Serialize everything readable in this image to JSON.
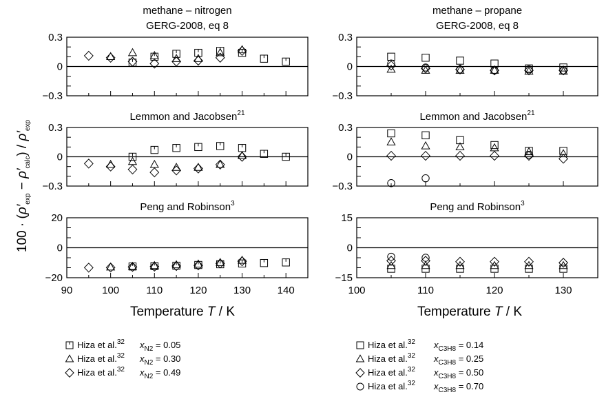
{
  "figure": {
    "ylabel": {
      "prefix": "100 · (",
      "rho": "ρ′",
      "sub_exp": "exp",
      "minus": " − ",
      "sub_calc": "calc",
      "close": ") / "
    },
    "xlabel": {
      "text": "Temperature ",
      "symbol": "T",
      "unit": " / K"
    }
  },
  "chart_data": [
    {
      "id": "mn-gerg",
      "type": "scatter",
      "title": [
        "methane – nitrogen",
        "GERG-2008, eq 8"
      ],
      "xlim": [
        90,
        145
      ],
      "ylim": [
        -0.3,
        0.3
      ],
      "yticks": [
        {
          "v": 0.3,
          "label": "0.3"
        },
        {
          "v": 0,
          "label": "0"
        },
        {
          "v": -0.3,
          "label": "−0.3"
        }
      ],
      "series": [
        {
          "marker": "square-tick",
          "points": [
            [
              105,
              0.04
            ],
            [
              110,
              0.1
            ],
            [
              115,
              0.13
            ],
            [
              120,
              0.14
            ],
            [
              125,
              0.16
            ],
            [
              130,
              0.14
            ],
            [
              135,
              0.08
            ],
            [
              140,
              0.05
            ]
          ]
        },
        {
          "marker": "triangle",
          "points": [
            [
              100,
              0.1
            ],
            [
              105,
              0.14
            ],
            [
              110,
              0.11
            ],
            [
              115,
              0.08
            ],
            [
              120,
              0.08
            ],
            [
              125,
              0.14
            ],
            [
              130,
              0.17
            ]
          ]
        },
        {
          "marker": "diamond",
          "points": [
            [
              95,
              0.11
            ],
            [
              100,
              0.09
            ],
            [
              105,
              0.05
            ],
            [
              110,
              0.03
            ],
            [
              115,
              0.05
            ],
            [
              120,
              0.06
            ],
            [
              125,
              0.09
            ],
            [
              130,
              0.16
            ]
          ]
        }
      ]
    },
    {
      "id": "mp-gerg",
      "type": "scatter",
      "title": [
        "methane – propane",
        "GERG-2008, eq 8"
      ],
      "xlim": [
        100,
        135
      ],
      "ylim": [
        -0.3,
        0.3
      ],
      "yticks": [
        {
          "v": 0.3,
          "label": "0.3"
        },
        {
          "v": 0,
          "label": "0"
        },
        {
          "v": -0.3,
          "label": "−0.3"
        }
      ],
      "series": [
        {
          "marker": "square",
          "points": [
            [
              105,
              0.1
            ],
            [
              110,
              0.09
            ],
            [
              115,
              0.06
            ],
            [
              120,
              0.03
            ],
            [
              125,
              -0.02
            ],
            [
              130,
              -0.01
            ]
          ]
        },
        {
          "marker": "triangle",
          "points": [
            [
              105,
              -0.03
            ],
            [
              110,
              -0.04
            ],
            [
              115,
              -0.04
            ],
            [
              120,
              -0.04
            ],
            [
              125,
              -0.05
            ],
            [
              130,
              -0.05
            ]
          ]
        },
        {
          "marker": "diamond",
          "points": [
            [
              105,
              0.01
            ],
            [
              110,
              -0.02
            ],
            [
              115,
              -0.03
            ],
            [
              120,
              -0.04
            ],
            [
              125,
              -0.04
            ],
            [
              130,
              -0.04
            ]
          ]
        },
        {
          "marker": "circle",
          "points": [
            [
              105,
              0.03
            ],
            [
              110,
              -0.01
            ],
            [
              115,
              -0.03
            ],
            [
              120,
              -0.04
            ],
            [
              125,
              -0.03
            ],
            [
              130,
              -0.04
            ]
          ]
        }
      ]
    },
    {
      "id": "mn-lemmon",
      "type": "scatter",
      "title": [
        "Lemmon and Jacobsen"
      ],
      "title_sup": "21",
      "xlim": [
        90,
        145
      ],
      "ylim": [
        -0.3,
        0.3
      ],
      "yticks": [
        {
          "v": 0.3,
          "label": "0.3"
        },
        {
          "v": 0,
          "label": "0"
        },
        {
          "v": -0.3,
          "label": "−0.3"
        }
      ],
      "series": [
        {
          "marker": "square-tick",
          "points": [
            [
              105,
              0.0
            ],
            [
              110,
              0.07
            ],
            [
              115,
              0.09
            ],
            [
              120,
              0.1
            ],
            [
              125,
              0.11
            ],
            [
              130,
              0.09
            ],
            [
              135,
              0.03
            ],
            [
              140,
              0.0
            ]
          ]
        },
        {
          "marker": "triangle",
          "points": [
            [
              100,
              -0.08
            ],
            [
              105,
              -0.05
            ],
            [
              110,
              -0.08
            ],
            [
              115,
              -0.11
            ],
            [
              120,
              -0.11
            ],
            [
              125,
              -0.08
            ],
            [
              130,
              0.01
            ]
          ]
        },
        {
          "marker": "diamond",
          "points": [
            [
              95,
              -0.07
            ],
            [
              100,
              -0.1
            ],
            [
              105,
              -0.13
            ],
            [
              110,
              -0.16
            ],
            [
              115,
              -0.14
            ],
            [
              120,
              -0.12
            ],
            [
              125,
              -0.08
            ],
            [
              130,
              0.0
            ]
          ]
        }
      ]
    },
    {
      "id": "mp-lemmon",
      "type": "scatter",
      "title": [
        "Lemmon and Jacobsen"
      ],
      "title_sup": "21",
      "xlim": [
        100,
        135
      ],
      "ylim": [
        -0.3,
        0.3
      ],
      "yticks": [
        {
          "v": 0.3,
          "label": "0.3"
        },
        {
          "v": 0,
          "label": "0"
        },
        {
          "v": -0.3,
          "label": "−0.3"
        }
      ],
      "series": [
        {
          "marker": "square",
          "points": [
            [
              105,
              0.24
            ],
            [
              110,
              0.22
            ],
            [
              115,
              0.17
            ],
            [
              120,
              0.12
            ],
            [
              125,
              0.06
            ],
            [
              130,
              0.06
            ]
          ]
        },
        {
          "marker": "triangle",
          "points": [
            [
              105,
              0.15
            ],
            [
              110,
              0.11
            ],
            [
              115,
              0.1
            ],
            [
              120,
              0.09
            ],
            [
              125,
              0.05
            ],
            [
              130,
              0.03
            ]
          ]
        },
        {
          "marker": "diamond",
          "points": [
            [
              105,
              0.01
            ],
            [
              110,
              0.01
            ],
            [
              115,
              0.01
            ],
            [
              120,
              0.01
            ],
            [
              125,
              0.01
            ],
            [
              130,
              -0.02
            ]
          ]
        },
        {
          "marker": "circle",
          "points": [
            [
              105,
              -0.27
            ],
            [
              110,
              -0.22
            ],
            [
              125,
              0.02
            ]
          ]
        }
      ]
    },
    {
      "id": "mn-peng",
      "type": "scatter",
      "title": [
        "Peng and Robinson"
      ],
      "title_sup": "3",
      "xlim": [
        90,
        145
      ],
      "ylim": [
        -20,
        20
      ],
      "yticks": [
        {
          "v": 20,
          "label": "20"
        },
        {
          "v": 0,
          "label": "0"
        },
        {
          "v": -20,
          "label": "−20"
        }
      ],
      "xticks": [
        {
          "v": 90,
          "label": "90"
        },
        {
          "v": 100,
          "label": "100"
        },
        {
          "v": 110,
          "label": "110"
        },
        {
          "v": 120,
          "label": "120"
        },
        {
          "v": 130,
          "label": "130"
        },
        {
          "v": 140,
          "label": "140"
        }
      ],
      "series": [
        {
          "marker": "square-tick",
          "points": [
            [
              105,
              -12.5
            ],
            [
              110,
              -12.3
            ],
            [
              115,
              -12.0
            ],
            [
              120,
              -11.5
            ],
            [
              125,
              -11.0
            ],
            [
              130,
              -10.5
            ],
            [
              135,
              -10.2
            ],
            [
              140,
              -9.8
            ]
          ]
        },
        {
          "marker": "triangle",
          "points": [
            [
              100,
              -13.0
            ],
            [
              105,
              -12.5
            ],
            [
              110,
              -12.0
            ],
            [
              115,
              -11.5
            ],
            [
              120,
              -11.0
            ],
            [
              125,
              -10.0
            ],
            [
              130,
              -8.5
            ]
          ]
        },
        {
          "marker": "diamond",
          "points": [
            [
              95,
              -13.3
            ],
            [
              100,
              -13.2
            ],
            [
              105,
              -12.8
            ],
            [
              110,
              -12.6
            ],
            [
              115,
              -12.2
            ],
            [
              120,
              -11.8
            ],
            [
              125,
              -10.5
            ],
            [
              130,
              -9.0
            ]
          ]
        }
      ]
    },
    {
      "id": "mp-peng",
      "type": "scatter",
      "title": [
        "Peng and Robinson"
      ],
      "title_sup": "3",
      "xlim": [
        100,
        135
      ],
      "ylim": [
        -15,
        15
      ],
      "yticks": [
        {
          "v": 15,
          "label": "15"
        },
        {
          "v": 0,
          "label": "0"
        },
        {
          "v": -15,
          "label": "−15"
        }
      ],
      "xticks": [
        {
          "v": 100,
          "label": "100"
        },
        {
          "v": 110,
          "label": "110"
        },
        {
          "v": 120,
          "label": "120"
        },
        {
          "v": 130,
          "label": "130"
        }
      ],
      "series": [
        {
          "marker": "square",
          "points": [
            [
              105,
              -10.5
            ],
            [
              110,
              -10.5
            ],
            [
              115,
              -10.5
            ],
            [
              120,
              -10.5
            ],
            [
              125,
              -10.5
            ],
            [
              130,
              -10.5
            ]
          ]
        },
        {
          "marker": "triangle",
          "points": [
            [
              105,
              -9.0
            ],
            [
              110,
              -9.0
            ],
            [
              115,
              -9.0
            ],
            [
              120,
              -9.0
            ],
            [
              125,
              -9.0
            ],
            [
              130,
              -9.0
            ]
          ]
        },
        {
          "marker": "diamond",
          "points": [
            [
              105,
              -6.5
            ],
            [
              110,
              -6.5
            ],
            [
              115,
              -7.0
            ],
            [
              120,
              -7.0
            ],
            [
              125,
              -7.0
            ],
            [
              130,
              -7.5
            ]
          ]
        },
        {
          "marker": "circle",
          "points": [
            [
              105,
              -4.5
            ],
            [
              110,
              -5.0
            ]
          ]
        }
      ]
    }
  ],
  "legend_left": [
    {
      "marker": "square-tick",
      "source": "Hiza et al.",
      "ref": "32",
      "var": "x",
      "sub": "N2",
      "value": " = 0.05"
    },
    {
      "marker": "triangle",
      "source": "Hiza et al.",
      "ref": "32",
      "var": "x",
      "sub": "N2",
      "value": " = 0.30"
    },
    {
      "marker": "diamond",
      "source": "Hiza et al.",
      "ref": "32",
      "var": "x",
      "sub": "N2",
      "value": " = 0.49"
    }
  ],
  "legend_right": [
    {
      "marker": "square",
      "source": "Hiza et al.",
      "ref": "32",
      "var": "x",
      "sub": "C3H8",
      "value": " = 0.14"
    },
    {
      "marker": "triangle",
      "source": "Hiza et al.",
      "ref": "32",
      "var": "x",
      "sub": "C3H8",
      "value": " = 0.25"
    },
    {
      "marker": "diamond",
      "source": "Hiza et al.",
      "ref": "32",
      "var": "x",
      "sub": "C3H8",
      "value": " = 0.50"
    },
    {
      "marker": "circle",
      "source": "Hiza et al.",
      "ref": "32",
      "var": "x",
      "sub": "C3H8",
      "value": " = 0.70"
    }
  ]
}
